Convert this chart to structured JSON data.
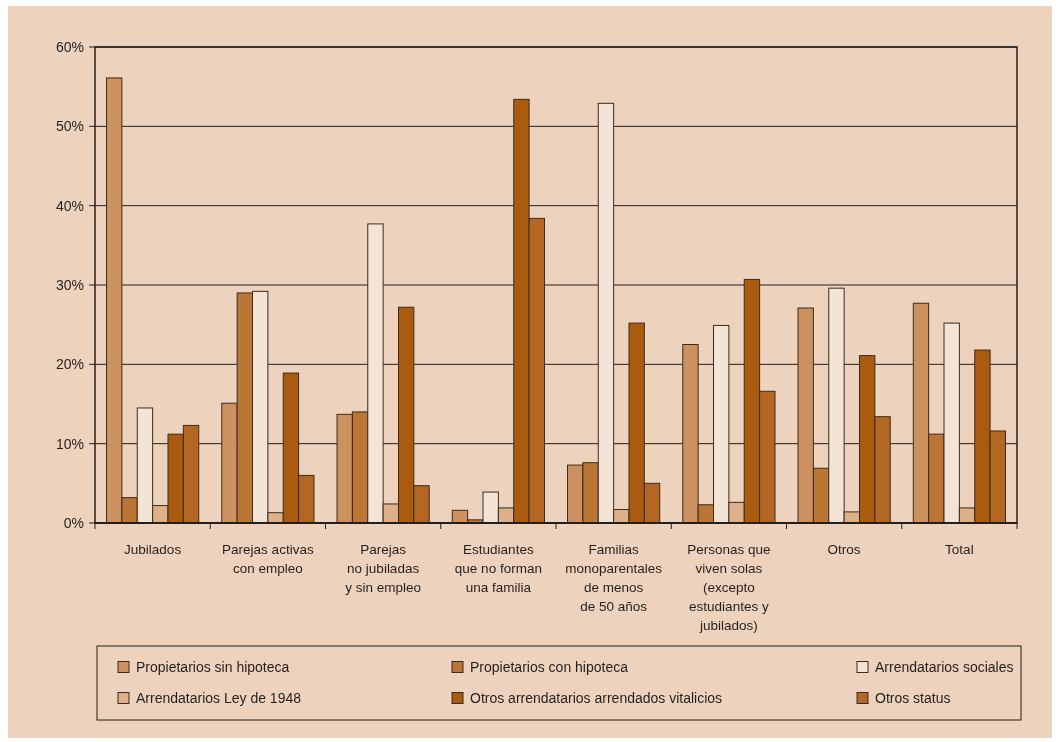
{
  "chart_data": {
    "type": "bar",
    "categories": [
      "Jubilados",
      "Parejas activas\ncon empleo",
      "Parejas\nno jubiladas\ny sin empleo",
      "Estudiantes\nque no forman\nuna familia",
      "Familias\nmonoparentales\nde menos\nde 50 años",
      "Personas que\nviven solas\n(excepto\nestudiantes y\njubilados)",
      "Otros",
      "Total"
    ],
    "series": [
      {
        "name": "Propietarios sin hipoteca",
        "color": "#cd9160",
        "values": [
          56.1,
          15.1,
          13.7,
          1.6,
          7.3,
          22.5,
          27.1,
          27.7
        ]
      },
      {
        "name": "Propietarios con hipoteca",
        "color": "#bb7535",
        "values": [
          3.2,
          29.0,
          14.0,
          0.4,
          7.6,
          2.3,
          6.9,
          11.2
        ]
      },
      {
        "name": "Arrendatarios sociales",
        "color": "#f3e4d6",
        "values": [
          14.5,
          29.2,
          37.7,
          3.9,
          52.9,
          24.9,
          29.6,
          25.2
        ]
      },
      {
        "name": "Arrendatarios Ley de 1948",
        "color": "#ddb08a",
        "values": [
          2.2,
          1.3,
          2.4,
          1.9,
          1.7,
          2.6,
          1.4,
          1.9
        ]
      },
      {
        "name": "Otros arrendatarios arrendados vitalicios",
        "color": "#ab5b10",
        "values": [
          11.2,
          18.9,
          27.2,
          53.4,
          25.2,
          30.7,
          21.1,
          21.8
        ]
      },
      {
        "name": "Otros status",
        "color": "#b36722",
        "values": [
          12.3,
          6.0,
          4.7,
          38.4,
          5.0,
          16.6,
          13.4,
          11.6
        ]
      }
    ],
    "ylim": [
      0,
      60
    ],
    "yticks": [
      {
        "value": 0,
        "label": "0%"
      },
      {
        "value": 10,
        "label": "10%"
      },
      {
        "value": 20,
        "label": "20%"
      },
      {
        "value": 30,
        "label": "30%"
      },
      {
        "value": 40,
        "label": "40%"
      },
      {
        "value": 50,
        "label": "50%"
      },
      {
        "value": 60,
        "label": "60%"
      }
    ],
    "grid": "y",
    "legend": "bottom"
  }
}
